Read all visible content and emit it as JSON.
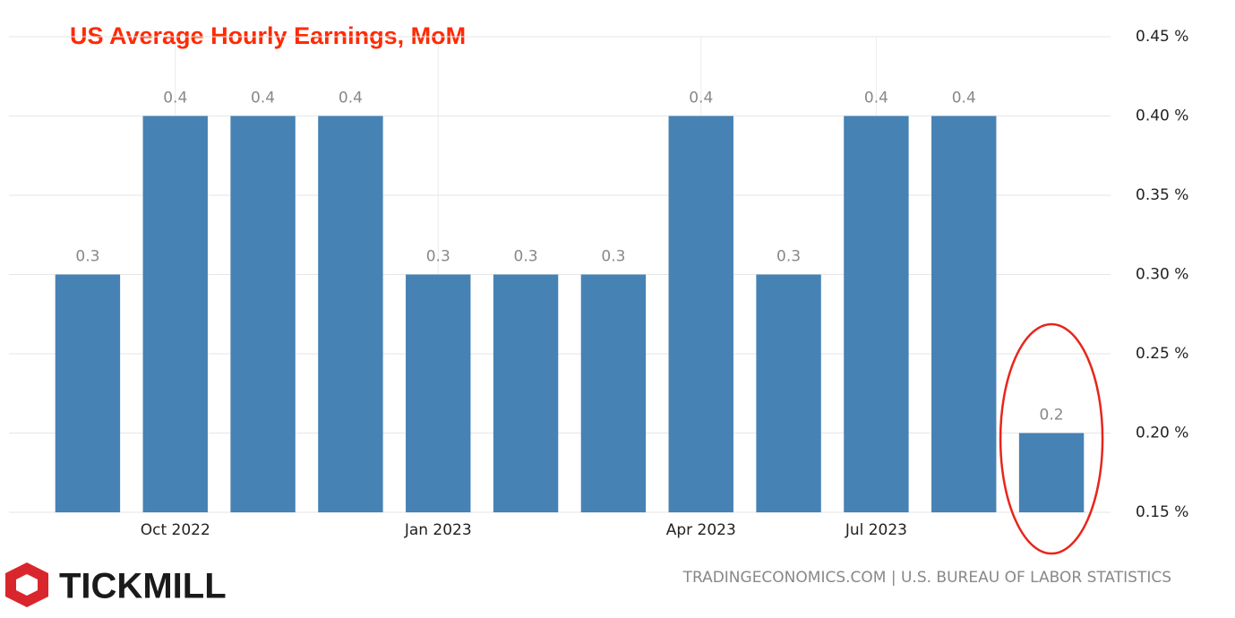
{
  "chart_data": {
    "type": "bar",
    "title": "US Average Hourly Earnings, MoM",
    "categories": [
      null,
      "Oct 2022",
      null,
      null,
      "Jan 2023",
      null,
      null,
      "Apr 2023",
      null,
      "Jul 2023",
      null,
      null
    ],
    "values": [
      0.3,
      0.4,
      0.4,
      0.4,
      0.3,
      0.3,
      0.3,
      0.4,
      0.3,
      0.4,
      0.4,
      0.2
    ],
    "color": "#4682b4",
    "ylim": [
      0.15,
      0.45
    ],
    "yticks": [
      {
        "value": 0.15,
        "label": "0.15 %"
      },
      {
        "value": 0.2,
        "label": "0.20 %"
      },
      {
        "value": 0.25,
        "label": "0.25 %"
      },
      {
        "value": 0.3,
        "label": "0.30 %"
      },
      {
        "value": 0.35,
        "label": "0.35 %"
      },
      {
        "value": 0.4,
        "label": "0.40 %"
      },
      {
        "value": 0.45,
        "label": "0.45 %"
      }
    ],
    "grid": true,
    "source": "TRADINGECONOMICS.COM | U.S. BUREAU OF LABOR STATISTICS",
    "brand": "TICKMILL"
  }
}
